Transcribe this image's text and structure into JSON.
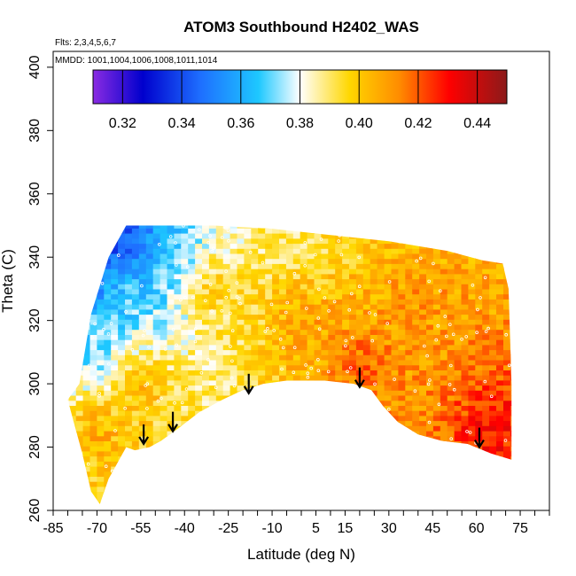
{
  "chart_data": {
    "type": "heatmap",
    "title": "ATOM3 Southbound H2402_WAS",
    "subtitle_flights": "Flts: 2,3,4,5,6,7",
    "subtitle_dates": "MMDD: 1001,1004,1006,1008,1011,1014",
    "xlabel": "Latitude (deg N)",
    "ylabel": "Theta (C)",
    "xlim": [
      -85,
      85
    ],
    "ylim": [
      260,
      405
    ],
    "x_tick_labels": [
      "-85",
      "-70",
      "-55",
      "-40",
      "-25",
      "-10",
      "5",
      "15",
      "30",
      "45",
      "60",
      "75"
    ],
    "x_tick_values": [
      -85,
      -70,
      -55,
      -40,
      -25,
      -10,
      5,
      15,
      30,
      45,
      60,
      75
    ],
    "y_tick_labels": [
      "260",
      "280",
      "300",
      "320",
      "340",
      "360",
      "380",
      "400"
    ],
    "y_tick_values": [
      260,
      280,
      300,
      320,
      340,
      360,
      380,
      400
    ],
    "colorbar": {
      "range": [
        0.31,
        0.45
      ],
      "tick_labels": [
        "0.32",
        "0.34",
        "0.36",
        "0.38",
        "0.40",
        "0.42",
        "0.44"
      ],
      "tick_values": [
        0.32,
        0.34,
        0.36,
        0.38,
        0.4,
        0.42,
        0.44
      ],
      "colors": [
        "#8a2be2",
        "#0000cd",
        "#1e6fff",
        "#1ec8ff",
        "#ffffff",
        "#ffd700",
        "#ff8c00",
        "#ff0000",
        "#8b1a1a"
      ]
    },
    "coverage": {
      "top": [
        [
          -76,
          300
        ],
        [
          -72,
          322
        ],
        [
          -66,
          340
        ],
        [
          -60,
          350
        ],
        [
          -50,
          350
        ],
        [
          -30,
          350
        ],
        [
          -10,
          349
        ],
        [
          10,
          347
        ],
        [
          30,
          345
        ],
        [
          50,
          342
        ],
        [
          62,
          339
        ],
        [
          69,
          338
        ],
        [
          71,
          330
        ],
        [
          72,
          300
        ]
      ],
      "bottom": [
        [
          72,
          276
        ],
        [
          65,
          278
        ],
        [
          57,
          281
        ],
        [
          48,
          282
        ],
        [
          40,
          284
        ],
        [
          33,
          288
        ],
        [
          28,
          293
        ],
        [
          24,
          298
        ],
        [
          18,
          300
        ],
        [
          8,
          301
        ],
        [
          -5,
          301
        ],
        [
          -13,
          300
        ],
        [
          -20,
          298
        ],
        [
          -27,
          295
        ],
        [
          -35,
          291
        ],
        [
          -42,
          286
        ],
        [
          -48,
          282
        ],
        [
          -52,
          280
        ],
        [
          -57,
          279
        ],
        [
          -60,
          280
        ],
        [
          -66,
          270
        ],
        [
          -69,
          262
        ],
        [
          -72,
          266
        ],
        [
          -75,
          278
        ],
        [
          -78,
          288
        ],
        [
          -80,
          295
        ]
      ]
    },
    "value_regions": [
      {
        "lat": -65,
        "theta": 345,
        "value": 0.33
      },
      {
        "lat": -58,
        "theta": 347,
        "value": 0.34
      },
      {
        "lat": -70,
        "theta": 332,
        "value": 0.35
      },
      {
        "lat": -60,
        "theta": 330,
        "value": 0.37
      },
      {
        "lat": -45,
        "theta": 342,
        "value": 0.37
      },
      {
        "lat": -72,
        "theta": 310,
        "value": 0.37
      },
      {
        "lat": -55,
        "theta": 300,
        "value": 0.41
      },
      {
        "lat": -30,
        "theta": 330,
        "value": 0.4
      },
      {
        "lat": 0,
        "theta": 345,
        "value": 0.39
      },
      {
        "lat": 0,
        "theta": 320,
        "value": 0.41
      },
      {
        "lat": 20,
        "theta": 305,
        "value": 0.42
      },
      {
        "lat": 40,
        "theta": 325,
        "value": 0.41
      },
      {
        "lat": 65,
        "theta": 285,
        "value": 0.43
      },
      {
        "lat": -70,
        "theta": 285,
        "value": 0.41
      }
    ],
    "arrows": [
      {
        "lat": -54,
        "theta": 281
      },
      {
        "lat": -44,
        "theta": 285
      },
      {
        "lat": -18,
        "theta": 297
      },
      {
        "lat": 20,
        "theta": 299
      },
      {
        "lat": 61,
        "theta": 280
      }
    ]
  }
}
